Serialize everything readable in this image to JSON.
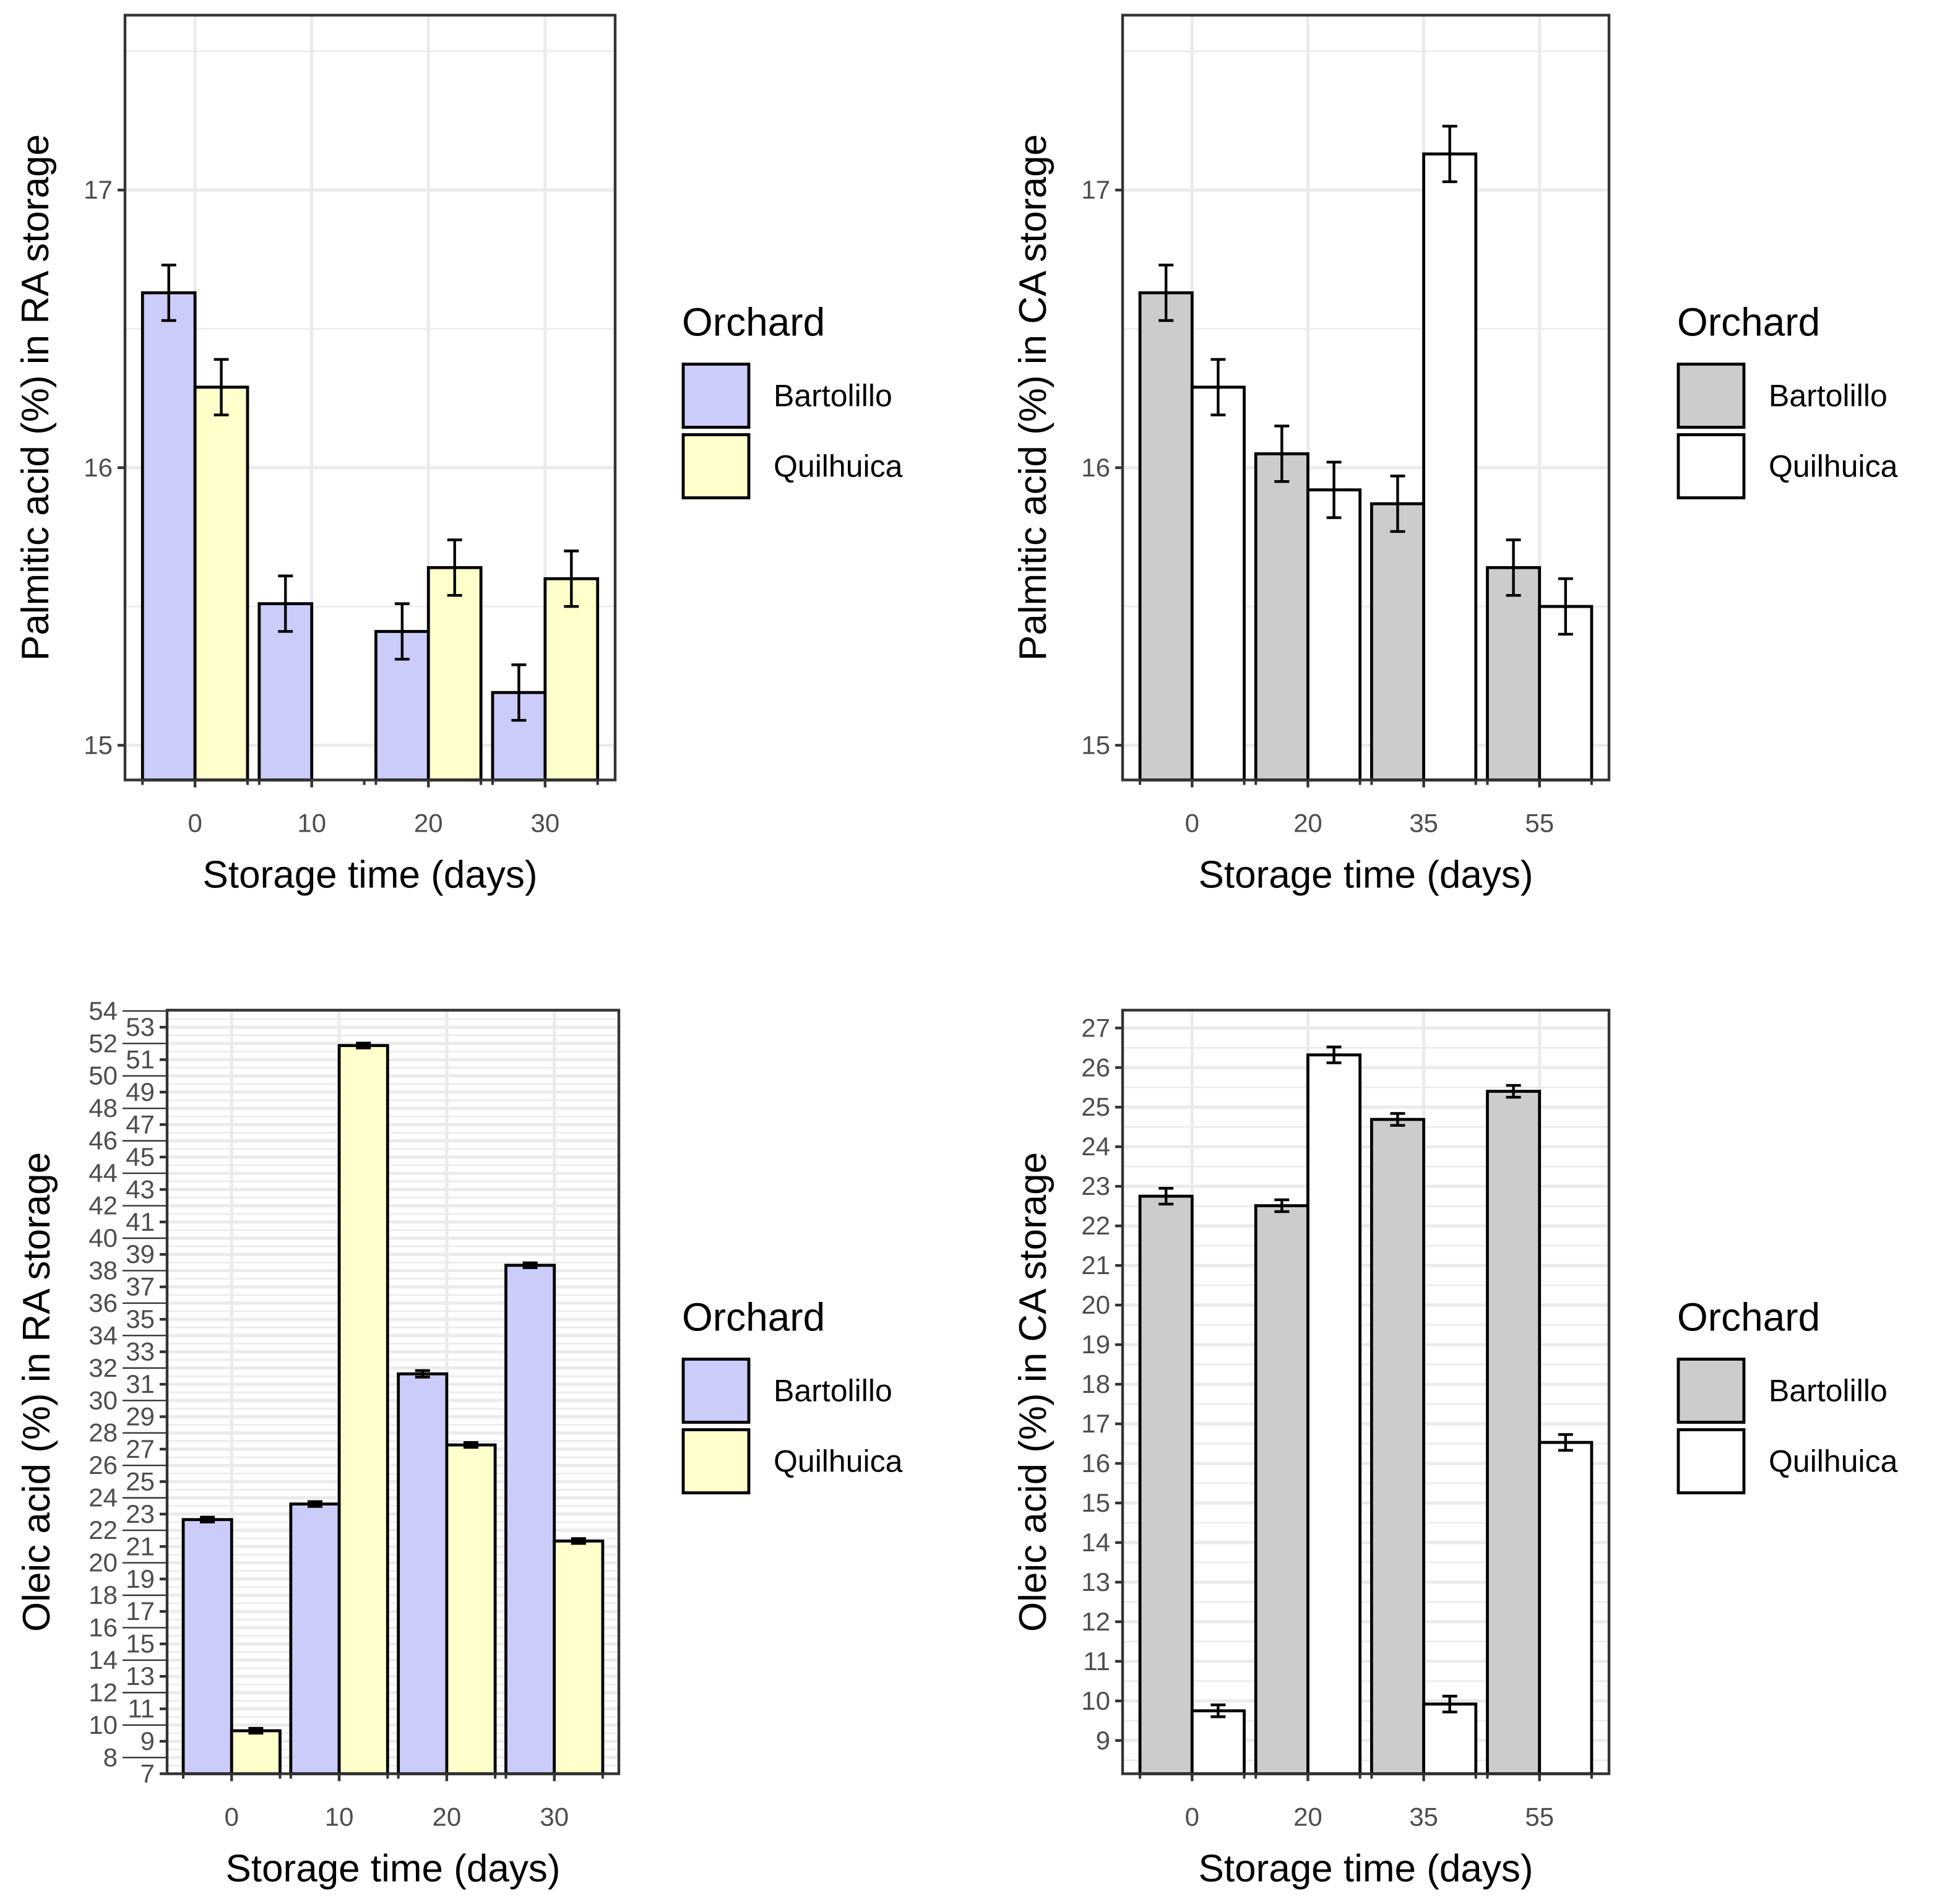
{
  "colors": {
    "bartolillo_ra": "#ccccfa",
    "quilhuica_ra": "#ffffcc",
    "bartolillo_ca": "#cccccc",
    "quilhuica_ca": "#ffffff"
  },
  "chart_data": [
    {
      "type": "bar",
      "xlabel": "Storage time (days)",
      "ylabel": "Palmitic acid (%) in RA storage",
      "categories": [
        "0",
        "10",
        "20",
        "30"
      ],
      "ylim": [
        14.875,
        17.63
      ],
      "yticks": [
        15,
        16,
        17
      ],
      "grid": true,
      "legend": {
        "title": "Orchard",
        "placement": "right"
      },
      "series": [
        {
          "name": "Bartolillo",
          "color": "#ccccfa",
          "values": [
            16.63,
            15.51,
            15.41,
            15.19
          ],
          "error": [
            0.1,
            0.1,
            0.1,
            0.1
          ]
        },
        {
          "name": "Quilhuica",
          "color": "#ffffcc",
          "values": [
            16.29,
            null,
            15.64,
            15.6
          ],
          "error": [
            0.1,
            null,
            0.1,
            0.1
          ]
        }
      ]
    },
    {
      "type": "bar",
      "xlabel": "Storage time (days)",
      "ylabel": "Palmitic acid (%) in CA storage",
      "categories": [
        "0",
        "20",
        "35",
        "55"
      ],
      "ylim": [
        14.875,
        17.63
      ],
      "yticks": [
        15,
        16,
        17
      ],
      "grid": true,
      "legend": {
        "title": "Orchard",
        "placement": "right"
      },
      "series": [
        {
          "name": "Bartolillo",
          "color": "#cccccc",
          "values": [
            16.63,
            16.05,
            15.87,
            15.64
          ],
          "error": [
            0.1,
            0.1,
            0.1,
            0.1
          ]
        },
        {
          "name": "Quilhuica",
          "color": "#ffffff",
          "values": [
            16.29,
            15.92,
            17.13,
            15.5
          ],
          "error": [
            0.1,
            0.1,
            0.1,
            0.1
          ]
        }
      ]
    },
    {
      "type": "bar",
      "xlabel": "Storage time (days)",
      "ylabel": "Oleic acid (%) in RA storage",
      "categories": [
        "0",
        "10",
        "20",
        "30"
      ],
      "ylim": [
        7,
        54.05
      ],
      "yticks": [
        7,
        8,
        9,
        10,
        11,
        12,
        13,
        14,
        15,
        16,
        17,
        18,
        19,
        20,
        21,
        22,
        23,
        24,
        25,
        26,
        27,
        28,
        29,
        30,
        31,
        32,
        33,
        34,
        35,
        36,
        37,
        38,
        39,
        40,
        41,
        42,
        43,
        44,
        45,
        46,
        47,
        48,
        49,
        50,
        51,
        52,
        53,
        54
      ],
      "grid": true,
      "legend": {
        "title": "Orchard",
        "placement": "right"
      },
      "series": [
        {
          "name": "Bartolillo",
          "color": "#ccccfa",
          "values": [
            22.66,
            23.62,
            31.64,
            38.33
          ],
          "error": [
            0.15,
            0.15,
            0.2,
            0.15
          ]
        },
        {
          "name": "Quilhuica",
          "color": "#ffffcc",
          "values": [
            9.65,
            51.87,
            27.26,
            21.34
          ],
          "error": [
            0.15,
            0.15,
            0.15,
            0.15
          ]
        }
      ]
    },
    {
      "type": "bar",
      "xlabel": "Storage time (days)",
      "ylabel": "Oleic acid (%) in CA storage",
      "categories": [
        "0",
        "20",
        "35",
        "55"
      ],
      "ylim": [
        8.16,
        27.45
      ],
      "yticks": [
        9,
        10,
        11,
        12,
        13,
        14,
        15,
        16,
        17,
        18,
        19,
        20,
        21,
        22,
        23,
        24,
        25,
        26,
        27
      ],
      "grid": true,
      "legend": {
        "title": "Orchard",
        "placement": "right"
      },
      "series": [
        {
          "name": "Bartolillo",
          "color": "#cccccc",
          "values": [
            22.75,
            22.51,
            24.69,
            25.4
          ],
          "error": [
            0.2,
            0.15,
            0.15,
            0.15
          ]
        },
        {
          "name": "Quilhuica",
          "color": "#ffffff",
          "values": [
            9.75,
            26.32,
            9.92,
            16.53
          ],
          "error": [
            0.15,
            0.2,
            0.2,
            0.2
          ]
        }
      ]
    }
  ]
}
